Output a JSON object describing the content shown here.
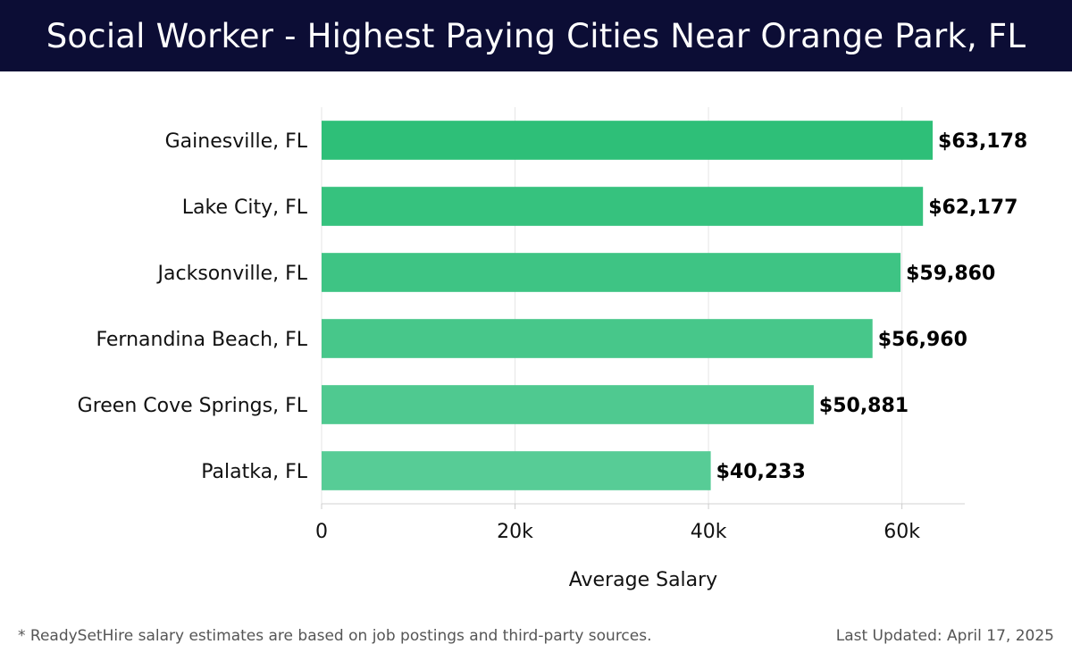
{
  "header": {
    "title": "Social Worker - Highest Paying Cities Near Orange Park, FL"
  },
  "footer": {
    "footnote": "* ReadySetHire salary estimates are based on job postings and third-party sources.",
    "updated": "Last Updated: April 17, 2025"
  },
  "colors": {
    "header_bg": "#0c0d35",
    "bar_top": "#2ebf78",
    "bar_bottom": "#57cc96"
  },
  "chart_data": {
    "type": "bar",
    "orientation": "horizontal",
    "title": "",
    "xlabel": "Average Salary",
    "ylabel": "",
    "categories": [
      "Gainesville, FL",
      "Lake City, FL",
      "Jacksonville, FL",
      "Fernandina Beach, FL",
      "Green Cove Springs, FL",
      "Palatka, FL"
    ],
    "values": [
      63178,
      62177,
      59860,
      56960,
      50881,
      40233
    ],
    "data_labels": [
      "$63,178",
      "$62,177",
      "$59,860",
      "$56,960",
      "$50,881",
      "$40,233"
    ],
    "xticks": [
      0,
      20000,
      40000,
      60000
    ],
    "xtick_labels": [
      "0",
      "20k",
      "40k",
      "60k"
    ],
    "xlim": [
      0,
      66500
    ],
    "grid": true,
    "legend": "none"
  }
}
